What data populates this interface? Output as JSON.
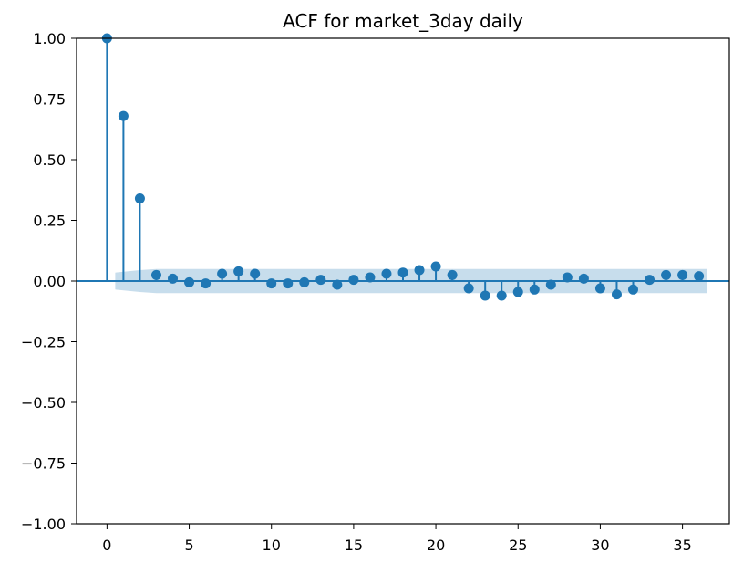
{
  "chart_data": {
    "type": "scatter",
    "subtype": "stem",
    "title": "ACF for market_3day daily",
    "xlabel": "",
    "ylabel": "",
    "xlim": [
      -1.85,
      37.85
    ],
    "ylim": [
      -1.0,
      1.0
    ],
    "xticks": [
      0,
      5,
      10,
      15,
      20,
      25,
      30,
      35
    ],
    "yticks": [
      -1.0,
      -0.75,
      -0.5,
      -0.25,
      0.0,
      0.25,
      0.5,
      0.75,
      1.0
    ],
    "ytick_labels": [
      "−1.00",
      "−0.75",
      "−0.50",
      "−0.25",
      "0.00",
      "0.25",
      "0.50",
      "0.75",
      "1.00"
    ],
    "xtick_labels": [
      "0",
      "5",
      "10",
      "15",
      "20",
      "25",
      "30",
      "35"
    ],
    "grid": false,
    "legend": false,
    "colors": {
      "series": "#1f77b4",
      "confidence_band": "#1f77b4",
      "axes": "#000000"
    },
    "lags": [
      0,
      1,
      2,
      3,
      4,
      5,
      6,
      7,
      8,
      9,
      10,
      11,
      12,
      13,
      14,
      15,
      16,
      17,
      18,
      19,
      20,
      21,
      22,
      23,
      24,
      25,
      26,
      27,
      28,
      29,
      30,
      31,
      32,
      33,
      34,
      35,
      36
    ],
    "acf": [
      1.0,
      0.68,
      0.34,
      0.025,
      0.01,
      -0.005,
      -0.01,
      0.03,
      0.04,
      0.03,
      -0.01,
      -0.01,
      -0.005,
      0.005,
      -0.015,
      0.005,
      0.015,
      0.03,
      0.035,
      0.045,
      0.06,
      0.025,
      -0.03,
      -0.06,
      -0.06,
      -0.045,
      -0.035,
      -0.015,
      0.015,
      0.01,
      -0.03,
      -0.055,
      -0.035,
      0.005,
      0.025,
      0.025,
      0.02
    ],
    "confidence_band_halfwidth": [
      0.0,
      0.035,
      0.045,
      0.05,
      0.05,
      0.05,
      0.05,
      0.05,
      0.05,
      0.05,
      0.05,
      0.05,
      0.05,
      0.05,
      0.05,
      0.05,
      0.05,
      0.05,
      0.05,
      0.05,
      0.05,
      0.05,
      0.05,
      0.05,
      0.05,
      0.05,
      0.05,
      0.05,
      0.05,
      0.05,
      0.05,
      0.05,
      0.05,
      0.05,
      0.05,
      0.05,
      0.05
    ]
  }
}
